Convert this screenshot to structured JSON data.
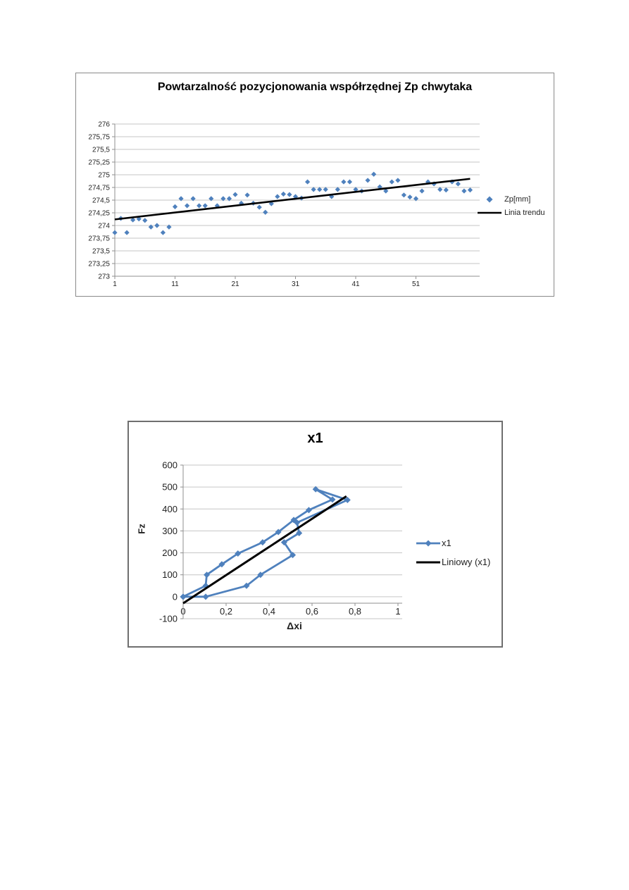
{
  "document": {
    "background": "#ffffff"
  },
  "colors": {
    "series_blue": "#4F81BD",
    "trend_black": "#000000",
    "gridline": "#c6c6c6",
    "axis": "#8f8f8f",
    "label_text": "#1f1f1f"
  },
  "chart_data": [
    {
      "type": "scatter",
      "title": "Powtarzalność pozycjonowania współrzędnej Zp chwytaka",
      "xlabel": "",
      "ylabel": "",
      "xlim": [
        1,
        60
      ],
      "ylim": [
        273,
        276
      ],
      "grid": true,
      "legend_position": "right",
      "x_tick_values": [
        1,
        11,
        21,
        31,
        41,
        51
      ],
      "x_tick_labels": [
        "1",
        "11",
        "21",
        "31",
        "41",
        "51"
      ],
      "y_tick_values": [
        276,
        275.75,
        275.5,
        275.25,
        275,
        274.75,
        274.5,
        274.25,
        274,
        273.75,
        273.5,
        273.25,
        273
      ],
      "y_tick_labels": [
        "276",
        "275,75",
        "275,5",
        "275,25",
        "275",
        "274,75",
        "274,5",
        "274,25",
        "274",
        "273,75",
        "273,5",
        "273,25",
        "273"
      ],
      "series": [
        {
          "name": "Zp[mm]",
          "kind": "points",
          "marker": "diamond",
          "color": "#4F81BD",
          "x_start": 1,
          "values": [
            273.86,
            274.14,
            273.86,
            274.11,
            274.13,
            274.1,
            273.97,
            274.0,
            273.86,
            273.97,
            274.37,
            274.53,
            274.39,
            274.53,
            274.39,
            274.39,
            274.53,
            274.39,
            274.53,
            274.53,
            274.61,
            274.44,
            274.6,
            274.44,
            274.36,
            274.26,
            274.43,
            274.57,
            274.62,
            274.61,
            274.57,
            274.54,
            274.86,
            274.71,
            274.71,
            274.71,
            274.57,
            274.71,
            274.86,
            274.86,
            274.71,
            274.68,
            274.89,
            275.01,
            274.76,
            274.68,
            274.86,
            274.89,
            274.6,
            274.56,
            274.53,
            274.68,
            274.86,
            274.82,
            274.71,
            274.7,
            274.86,
            274.82,
            274.68,
            274.7
          ]
        },
        {
          "name": "Linia trendu",
          "kind": "trendline",
          "color": "#000000",
          "points": [
            [
              1,
              274.12
            ],
            [
              60,
              274.92
            ]
          ]
        }
      ]
    },
    {
      "type": "line",
      "title": "x1",
      "xlabel": "Δxi",
      "ylabel": "Fz",
      "xlim": [
        0,
        1
      ],
      "ylim": [
        -100,
        600
      ],
      "grid": true,
      "legend_position": "right",
      "x_tick_values": [
        0,
        0.2,
        0.4,
        0.6,
        0.8,
        1
      ],
      "x_tick_labels": [
        "0",
        "0,2",
        "0,4",
        "0,6",
        "0,8",
        "1"
      ],
      "y_tick_values": [
        600,
        500,
        400,
        300,
        200,
        100,
        0,
        -100
      ],
      "y_tick_labels": [
        "600",
        "500",
        "400",
        "300",
        "200",
        "100",
        "0",
        "-100"
      ],
      "series": [
        {
          "name": "x1",
          "kind": "line-markers",
          "marker": "diamond",
          "color": "#4F81BD",
          "points": [
            [
              0,
              0
            ],
            [
              0.105,
              50
            ],
            [
              0.11,
              100
            ],
            [
              0.18,
              148
            ],
            [
              0.255,
              197
            ],
            [
              0.37,
              248
            ],
            [
              0.443,
              295
            ],
            [
              0.515,
              350
            ],
            [
              0.585,
              395
            ],
            [
              0.695,
              443
            ],
            [
              0.617,
              490
            ],
            [
              0.765,
              441
            ],
            [
              0.53,
              338
            ],
            [
              0.54,
              290
            ],
            [
              0.47,
              248
            ],
            [
              0.51,
              190
            ],
            [
              0.36,
              100
            ],
            [
              0.295,
              50
            ],
            [
              0.105,
              0
            ],
            [
              0,
              0
            ]
          ]
        },
        {
          "name": "Liniowy (x1)",
          "kind": "trendline",
          "color": "#000000",
          "points": [
            [
              0,
              -30
            ],
            [
              0.76,
              458
            ]
          ]
        }
      ]
    }
  ]
}
